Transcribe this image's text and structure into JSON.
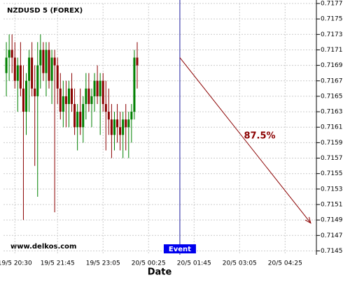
{
  "chart_data": {
    "type": "candlestick",
    "title": "NZDUSD 5 (FOREX)",
    "x_label": "Date",
    "watermark": "www.delkos.com",
    "up_color": "#008000",
    "down_color": "#8b0000",
    "grid": true,
    "x": [
      -3,
      -2,
      -1,
      0,
      1,
      2,
      3,
      4,
      5,
      6,
      7,
      8,
      9,
      10,
      11,
      12,
      13,
      14,
      15,
      16,
      17,
      18,
      19,
      20,
      21,
      22,
      23,
      24,
      25,
      26,
      27,
      28,
      29,
      30,
      31,
      32,
      33,
      34,
      35,
      36,
      37,
      38,
      39,
      40,
      41,
      42,
      43
    ],
    "open": [
      0.7168,
      0.717,
      0.7171,
      0.717,
      0.7167,
      0.7169,
      0.7166,
      0.7163,
      0.7167,
      0.717,
      0.7166,
      0.7165,
      0.7169,
      0.7171,
      0.7168,
      0.7171,
      0.7167,
      0.717,
      0.7169,
      0.7166,
      0.7163,
      0.7165,
      0.7164,
      0.7166,
      0.7164,
      0.7161,
      0.7163,
      0.7161,
      0.7164,
      0.7166,
      0.7164,
      0.7165,
      0.7167,
      0.7165,
      0.7167,
      0.7164,
      0.7163,
      0.7162,
      0.716,
      0.7162,
      0.7161,
      0.716,
      0.7162,
      0.7161,
      0.7162,
      0.7163,
      0.717
    ],
    "high": [
      0.7172,
      0.7173,
      0.7173,
      0.7172,
      0.717,
      0.7172,
      0.7169,
      0.7168,
      0.7171,
      0.7172,
      0.7169,
      0.7172,
      0.7173,
      0.7172,
      0.7172,
      0.7172,
      0.7171,
      0.7171,
      0.717,
      0.7168,
      0.7167,
      0.7167,
      0.7167,
      0.7168,
      0.7166,
      0.7164,
      0.7166,
      0.7165,
      0.7168,
      0.7168,
      0.7166,
      0.7168,
      0.7169,
      0.7168,
      0.7168,
      0.7167,
      0.7166,
      0.7164,
      0.7163,
      0.7164,
      0.7163,
      0.7163,
      0.7164,
      0.7163,
      0.7164,
      0.7171,
      0.7172
    ],
    "low": [
      0.7165,
      0.7167,
      0.7168,
      0.7166,
      0.7163,
      0.7165,
      0.7149,
      0.716,
      0.7163,
      0.7165,
      0.7156,
      0.7152,
      0.7166,
      0.7167,
      0.7165,
      0.7166,
      0.7164,
      0.715,
      0.7164,
      0.7162,
      0.7161,
      0.7161,
      0.7161,
      0.7163,
      0.716,
      0.7158,
      0.716,
      0.7159,
      0.7162,
      0.7163,
      0.7161,
      0.7163,
      0.7164,
      0.716,
      0.7163,
      0.7158,
      0.716,
      0.7157,
      0.7158,
      0.7159,
      0.7158,
      0.7157,
      0.7158,
      0.7157,
      0.7159,
      0.7162,
      0.7166
    ],
    "close": [
      0.717,
      0.7171,
      0.717,
      0.7167,
      0.7169,
      0.7166,
      0.7163,
      0.7167,
      0.717,
      0.7166,
      0.7165,
      0.7169,
      0.7171,
      0.7168,
      0.7171,
      0.7167,
      0.717,
      0.7169,
      0.7166,
      0.7163,
      0.7165,
      0.7164,
      0.7166,
      0.7164,
      0.7161,
      0.7163,
      0.7161,
      0.7164,
      0.7166,
      0.7164,
      0.7165,
      0.7167,
      0.7165,
      0.7167,
      0.7164,
      0.7163,
      0.7162,
      0.716,
      0.7162,
      0.7161,
      0.716,
      0.7162,
      0.7161,
      0.7162,
      0.7163,
      0.717,
      0.7169
    ],
    "xlim": [
      -4,
      106
    ],
    "xticks": [
      {
        "value": 0,
        "label": "19/5 20:30"
      },
      {
        "value": 15,
        "label": "19/5 21:45"
      },
      {
        "value": 31,
        "label": "19/5 23:05"
      },
      {
        "value": 47,
        "label": "20/5 00:25"
      },
      {
        "value": 63,
        "label": "20/5 01:45"
      },
      {
        "value": 79,
        "label": "20/5 03:05"
      },
      {
        "value": 95,
        "label": "20/5 04:25"
      }
    ],
    "ylim": [
      0.71445,
      0.7177
    ],
    "yticks": [
      0.7145,
      0.7147,
      0.7149,
      0.7151,
      0.7153,
      0.7155,
      0.7157,
      0.7159,
      0.7161,
      0.7163,
      0.7165,
      0.7167,
      0.7169,
      0.7171,
      0.7173,
      0.7175,
      0.7177
    ],
    "event": {
      "x": 58,
      "label": "Event",
      "color": "#1a1a9e"
    },
    "forecast": {
      "x": [
        58,
        104
      ],
      "y": [
        0.717,
        0.71486
      ],
      "label": "87.5%",
      "color": "#8b0000"
    }
  }
}
